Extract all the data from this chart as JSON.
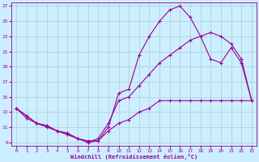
{
  "xlabel": "Windchill (Refroidissement éolien,°C)",
  "bg_color": "#cceeff",
  "grid_color": "#aacccc",
  "line_color": "#990099",
  "xlim": [
    -0.5,
    23.5
  ],
  "ylim": [
    8.5,
    27.5
  ],
  "xticks": [
    0,
    1,
    2,
    3,
    4,
    5,
    6,
    7,
    8,
    9,
    10,
    11,
    12,
    13,
    14,
    15,
    16,
    17,
    18,
    19,
    20,
    21,
    22,
    23
  ],
  "yticks": [
    9,
    11,
    13,
    15,
    17,
    19,
    21,
    23,
    25,
    27
  ],
  "line1_x": [
    0,
    1,
    2,
    3,
    4,
    5,
    6,
    7,
    8,
    9,
    10,
    11,
    12,
    13,
    14,
    15,
    16,
    17,
    18,
    19,
    20,
    21,
    22,
    23
  ],
  "line1_y": [
    13.5,
    12.5,
    11.5,
    11.2,
    10.5,
    10.2,
    9.5,
    9.0,
    9.2,
    11.0,
    15.5,
    16.0,
    20.5,
    23.0,
    25.0,
    26.5,
    27.0,
    25.5,
    23.0,
    20.0,
    19.5,
    21.5,
    19.5,
    14.5
  ],
  "line2_x": [
    0,
    1,
    2,
    3,
    4,
    5,
    6,
    7,
    8,
    9,
    10,
    11,
    12,
    13,
    14,
    15,
    16,
    17,
    18,
    19,
    20,
    21,
    22,
    23
  ],
  "line2_y": [
    13.5,
    12.5,
    11.5,
    11.2,
    10.5,
    10.2,
    9.5,
    9.0,
    9.5,
    11.5,
    14.5,
    15.0,
    16.5,
    18.0,
    19.5,
    20.5,
    21.5,
    22.5,
    23.0,
    23.5,
    23.0,
    22.0,
    20.0,
    14.5
  ],
  "line3_x": [
    0,
    1,
    2,
    3,
    4,
    5,
    6,
    7,
    8,
    9,
    10,
    11,
    12,
    13,
    14,
    15,
    16,
    17,
    18,
    19,
    20,
    21,
    22,
    23
  ],
  "line3_y": [
    13.5,
    12.2,
    11.5,
    11.0,
    10.5,
    10.0,
    9.5,
    9.2,
    9.2,
    10.5,
    11.5,
    12.0,
    13.0,
    13.5,
    14.5,
    14.5,
    14.5,
    14.5,
    14.5,
    14.5,
    14.5,
    14.5,
    14.5,
    14.5
  ]
}
